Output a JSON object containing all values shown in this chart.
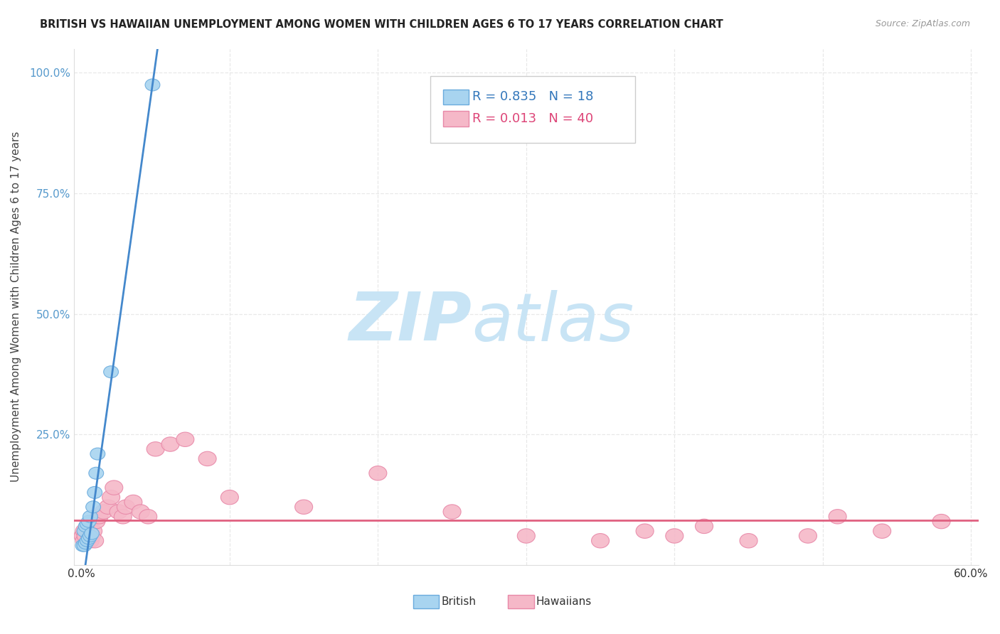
{
  "title": "BRITISH VS HAWAIIAN UNEMPLOYMENT AMONG WOMEN WITH CHILDREN AGES 6 TO 17 YEARS CORRELATION CHART",
  "source": "Source: ZipAtlas.com",
  "ylabel": "Unemployment Among Women with Children Ages 6 to 17 years",
  "xlim": [
    -0.005,
    0.605
  ],
  "ylim": [
    -0.02,
    1.05
  ],
  "xticks": [
    0.0,
    0.1,
    0.2,
    0.3,
    0.4,
    0.5,
    0.6
  ],
  "xtick_labels": [
    "0.0%",
    "",
    "",
    "",
    "",
    "",
    "60.0%"
  ],
  "yticks": [
    0.0,
    0.25,
    0.5,
    0.75,
    1.0
  ],
  "ytick_labels": [
    "",
    "25.0%",
    "50.0%",
    "75.0%",
    "100.0%"
  ],
  "british_R": 0.835,
  "british_N": 18,
  "hawaiian_R": 0.013,
  "hawaiian_N": 40,
  "british_color": "#a8d4f0",
  "hawaiian_color": "#f5b8c8",
  "british_edge_color": "#6aabdd",
  "hawaiian_edge_color": "#e888a8",
  "british_line_color": "#4488cc",
  "hawaiian_line_color": "#e06080",
  "watermark_zip": "ZIP",
  "watermark_atlas": "atlas",
  "watermark_color": "#c8e4f5",
  "british_x": [
    0.001,
    0.002,
    0.002,
    0.003,
    0.003,
    0.004,
    0.004,
    0.005,
    0.005,
    0.006,
    0.006,
    0.007,
    0.008,
    0.009,
    0.01,
    0.011,
    0.02,
    0.048
  ],
  "british_y": [
    0.02,
    0.02,
    0.05,
    0.025,
    0.06,
    0.03,
    0.065,
    0.035,
    0.07,
    0.04,
    0.08,
    0.045,
    0.1,
    0.13,
    0.17,
    0.21,
    0.38,
    0.975
  ],
  "hawaiian_x": [
    0.001,
    0.002,
    0.002,
    0.003,
    0.004,
    0.005,
    0.006,
    0.007,
    0.008,
    0.009,
    0.01,
    0.012,
    0.015,
    0.018,
    0.02,
    0.022,
    0.025,
    0.028,
    0.03,
    0.035,
    0.04,
    0.045,
    0.05,
    0.06,
    0.07,
    0.085,
    0.1,
    0.15,
    0.2,
    0.25,
    0.3,
    0.35,
    0.38,
    0.4,
    0.42,
    0.45,
    0.49,
    0.51,
    0.54,
    0.58
  ],
  "hawaiian_y": [
    0.04,
    0.05,
    0.03,
    0.04,
    0.05,
    0.06,
    0.03,
    0.04,
    0.05,
    0.03,
    0.07,
    0.08,
    0.09,
    0.1,
    0.12,
    0.14,
    0.09,
    0.08,
    0.1,
    0.11,
    0.09,
    0.08,
    0.22,
    0.23,
    0.24,
    0.2,
    0.12,
    0.1,
    0.17,
    0.09,
    0.04,
    0.03,
    0.05,
    0.04,
    0.06,
    0.03,
    0.04,
    0.08,
    0.05,
    0.07
  ],
  "background_color": "#ffffff",
  "grid_color": "#e8e8e8"
}
